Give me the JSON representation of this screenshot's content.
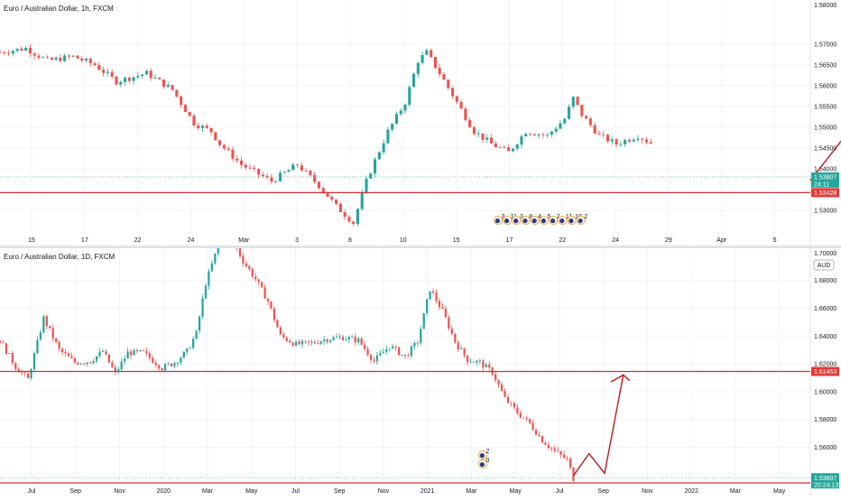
{
  "colors": {
    "up": "#26a69a",
    "down": "#ef5350",
    "line": "#b71c1c",
    "hline": "#d32f2f",
    "grid": "#f0f3fa",
    "axis_text": "#131722",
    "price_tag": "#26a69a",
    "level_tag": "#e53935"
  },
  "chart_data": [
    {
      "type": "candlestick",
      "title": "Euro / Australian Dollar, 1h, FXCM",
      "ylim": [
        1.5246,
        1.5806
      ],
      "y_ticks": [
        "1.57000",
        "1.56500",
        "1.56000",
        "1.55500",
        "1.55000",
        "1.54500",
        "1.54000",
        "1.53000"
      ],
      "y_top_label": "1.58000",
      "x_ticks": [
        "15",
        "17",
        "22",
        "24",
        "Mar",
        "3",
        "8",
        "10",
        "15",
        "17",
        "22",
        "24",
        "29",
        "Apr",
        "5"
      ],
      "x_count": 188,
      "candles_until": 151,
      "close_path": [
        [
          0,
          1.568
        ],
        [
          6,
          1.569
        ],
        [
          11,
          1.566
        ],
        [
          17,
          1.567
        ],
        [
          22,
          1.565
        ],
        [
          27,
          1.561
        ],
        [
          34,
          1.563
        ],
        [
          40,
          1.559
        ],
        [
          45,
          1.551
        ],
        [
          49,
          1.549
        ],
        [
          51,
          1.546
        ],
        [
          56,
          1.541
        ],
        [
          63,
          1.537
        ],
        [
          69,
          1.541
        ],
        [
          74,
          1.536
        ],
        [
          78,
          1.531
        ],
        [
          82,
          1.527
        ],
        [
          85,
          1.537
        ],
        [
          87,
          1.542
        ],
        [
          90,
          1.549
        ],
        [
          94,
          1.556
        ],
        [
          97,
          1.566
        ],
        [
          99,
          1.568
        ],
        [
          102,
          1.563
        ],
        [
          106,
          1.556
        ],
        [
          110,
          1.549
        ],
        [
          114,
          1.546
        ],
        [
          118,
          1.544
        ],
        [
          122,
          1.549
        ],
        [
          127,
          1.548
        ],
        [
          131,
          1.552
        ],
        [
          133,
          1.557
        ],
        [
          135,
          1.553
        ],
        [
          139,
          1.548
        ],
        [
          143,
          1.546
        ],
        [
          148,
          1.548
        ],
        [
          153,
          1.545
        ],
        [
          158,
          1.541
        ],
        [
          163,
          1.539
        ],
        [
          168,
          1.539
        ],
        [
          174,
          1.54
        ],
        [
          179,
          1.541
        ],
        [
          182,
          1.542
        ],
        [
          186,
          1.538
        ],
        [
          188,
          1.536
        ]
      ],
      "projection": [
        [
          188,
          1.5372
        ],
        [
          200,
          1.5531
        ],
        [
          244,
          1.5412
        ],
        [
          292,
          1.5791
        ]
      ],
      "horizontal_lines": [
        {
          "price": 1.53428,
          "label": "1.53428"
        }
      ],
      "last_price": {
        "price": 1.53807,
        "label": "1.53807",
        "sub": "24:11"
      },
      "event_markers": [
        "3",
        "11",
        "3",
        "8",
        "4",
        "5",
        "2",
        "11",
        "10",
        "2"
      ]
    },
    {
      "type": "candlestick",
      "title": "Euro / Australian Dollar, 1D, FXCM",
      "ylim": [
        1.5356,
        1.7032
      ],
      "y_ticks": [
        "1.68000",
        "1.66000",
        "1.64000",
        "1.62000",
        "1.60000",
        "1.58000",
        "1.56000"
      ],
      "y_top_label": "1.70000",
      "currency": "AUD",
      "x_ticks": [
        "Jul",
        "Sep",
        "Nov",
        "2020",
        "Mar",
        "May",
        "Jul",
        "Sep",
        "Nov",
        "2021",
        "Mar",
        "May",
        "Jul",
        "Sep",
        "Nov",
        "2022",
        "Mar",
        "May"
      ],
      "x_count": 260,
      "candles_until": 184,
      "close_path": [
        [
          0,
          1.637
        ],
        [
          5,
          1.618
        ],
        [
          9,
          1.609
        ],
        [
          14,
          1.653
        ],
        [
          19,
          1.63
        ],
        [
          24,
          1.621
        ],
        [
          29,
          1.622
        ],
        [
          33,
          1.629
        ],
        [
          37,
          1.613
        ],
        [
          41,
          1.628
        ],
        [
          46,
          1.628
        ],
        [
          52,
          1.617
        ],
        [
          56,
          1.621
        ],
        [
          60,
          1.629
        ],
        [
          63,
          1.642
        ],
        [
          66,
          1.678
        ],
        [
          70,
          1.705
        ],
        [
          74,
          1.712
        ],
        [
          78,
          1.694
        ],
        [
          82,
          1.681
        ],
        [
          86,
          1.665
        ],
        [
          90,
          1.64
        ],
        [
          95,
          1.634
        ],
        [
          100,
          1.635
        ],
        [
          105,
          1.638
        ],
        [
          110,
          1.639
        ],
        [
          115,
          1.637
        ],
        [
          120,
          1.622
        ],
        [
          125,
          1.633
        ],
        [
          130,
          1.625
        ],
        [
          134,
          1.636
        ],
        [
          138,
          1.674
        ],
        [
          142,
          1.658
        ],
        [
          146,
          1.636
        ],
        [
          150,
          1.623
        ],
        [
          154,
          1.621
        ],
        [
          158,
          1.614
        ],
        [
          162,
          1.595
        ],
        [
          166,
          1.585
        ],
        [
          170,
          1.577
        ],
        [
          174,
          1.565
        ],
        [
          178,
          1.557
        ],
        [
          182,
          1.551
        ],
        [
          184,
          1.5376
        ]
      ],
      "projection": [
        [
          184,
          1.5395
        ],
        [
          189,
          1.5554
        ],
        [
          194,
          1.5413
        ],
        [
          200,
          1.612
        ],
        [
          202,
          1.608
        ],
        [
          200,
          1.612
        ],
        [
          196,
          1.607
        ]
      ],
      "horizontal_lines": [
        {
          "price": 1.61453,
          "label": "1.61453"
        },
        {
          "price": 1.53428,
          "label": "1.53428"
        }
      ],
      "last_price": {
        "price": 1.53807,
        "label": "1.53807",
        "sub": "20:24:13"
      },
      "event_markers": [
        "2",
        "0"
      ]
    }
  ]
}
